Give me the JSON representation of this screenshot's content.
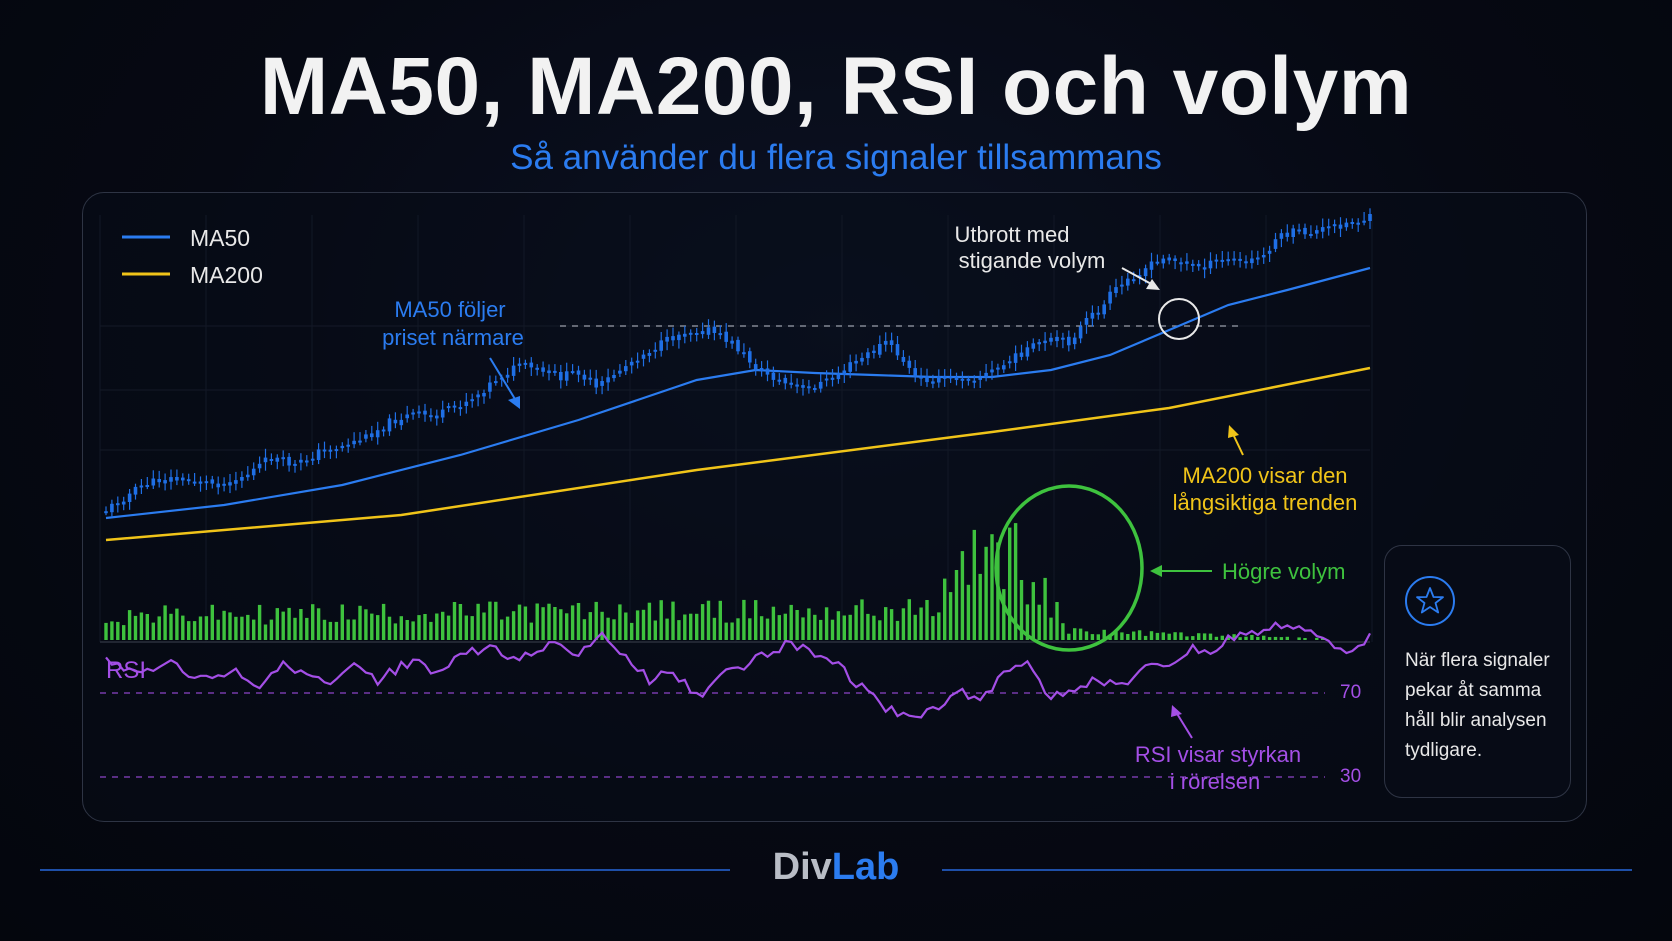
{
  "header": {
    "title": "MA50, MA200, RSI och volym",
    "subtitle": "Så använder du flera signaler tillsammans"
  },
  "colors": {
    "candle": "#1f6fe5",
    "ma50": "#2b7cf0",
    "ma200": "#f0c419",
    "volume": "#3ec23e",
    "rsi": "#a44fe6",
    "annotation_white": "#e8e8e8"
  },
  "chart_data": {
    "type": "line",
    "legend": {
      "placement": "top-left",
      "entries": [
        {
          "name": "MA50",
          "color": "#2b7cf0"
        },
        {
          "name": "MA200",
          "color": "#f0c419"
        }
      ]
    },
    "annotations": {
      "breakout": [
        "Utbrott med",
        "stigande volym"
      ],
      "ma50": [
        "MA50 följer",
        "priset närmare"
      ],
      "ma200": [
        "MA200 visar den",
        "långsiktiga trenden"
      ],
      "volume": "Högre volym",
      "rsi": [
        "RSI visar styrkan",
        "i rörelsen"
      ]
    },
    "rsi_panel": {
      "label": "RSI",
      "levels": [
        {
          "value": 70,
          "label": "70"
        },
        {
          "value": 30,
          "label": "30"
        }
      ]
    },
    "price_anchors": [
      [
        0,
        510
      ],
      [
        6,
        486
      ],
      [
        10,
        478
      ],
      [
        16,
        482
      ],
      [
        20,
        484
      ],
      [
        24,
        474
      ],
      [
        28,
        457
      ],
      [
        32,
        466
      ],
      [
        36,
        452
      ],
      [
        40,
        446
      ],
      [
        44,
        437
      ],
      [
        48,
        422
      ],
      [
        52,
        414
      ],
      [
        56,
        416
      ],
      [
        60,
        404
      ],
      [
        63,
        394
      ],
      [
        66,
        379
      ],
      [
        70,
        365
      ],
      [
        74,
        372
      ],
      [
        77,
        377
      ],
      [
        80,
        371
      ],
      [
        83,
        389
      ],
      [
        86,
        374
      ],
      [
        90,
        357
      ],
      [
        94,
        344
      ],
      [
        98,
        331
      ],
      [
        102,
        330
      ],
      [
        106,
        343
      ],
      [
        110,
        367
      ],
      [
        114,
        381
      ],
      [
        118,
        390
      ],
      [
        122,
        381
      ],
      [
        126,
        365
      ],
      [
        130,
        351
      ],
      [
        132,
        341
      ],
      [
        135,
        361
      ],
      [
        137,
        378
      ],
      [
        140,
        380
      ],
      [
        144,
        378
      ],
      [
        148,
        377
      ],
      [
        152,
        365
      ],
      [
        156,
        349
      ],
      [
        160,
        341
      ],
      [
        163,
        342
      ],
      [
        166,
        321
      ],
      [
        169,
        305
      ],
      [
        170,
        295
      ],
      [
        173,
        280
      ],
      [
        176,
        268
      ],
      [
        180,
        257
      ],
      [
        183,
        265
      ],
      [
        186,
        266
      ],
      [
        190,
        259
      ],
      [
        193,
        262
      ],
      [
        196,
        256
      ],
      [
        198,
        239
      ],
      [
        201,
        232
      ],
      [
        204,
        233
      ],
      [
        208,
        226
      ],
      [
        211,
        222
      ],
      [
        214,
        218
      ]
    ],
    "ma50_points": [
      [
        0,
        518
      ],
      [
        20,
        505
      ],
      [
        40,
        485
      ],
      [
        60,
        455
      ],
      [
        80,
        420
      ],
      [
        100,
        380
      ],
      [
        110,
        370
      ],
      [
        120,
        373
      ],
      [
        130,
        375
      ],
      [
        140,
        377
      ],
      [
        150,
        377
      ],
      [
        160,
        370
      ],
      [
        170,
        355
      ],
      [
        180,
        330
      ],
      [
        190,
        305
      ],
      [
        200,
        290
      ],
      [
        214,
        268
      ]
    ],
    "ma200_points": [
      [
        0,
        540
      ],
      [
        50,
        515
      ],
      [
        100,
        470
      ],
      [
        150,
        432
      ],
      [
        180,
        408
      ],
      [
        214,
        368
      ]
    ],
    "volume_anchors": [
      [
        0,
        26
      ],
      [
        60,
        30
      ],
      [
        140,
        32
      ],
      [
        145,
        80
      ],
      [
        148,
        110
      ],
      [
        151,
        95
      ],
      [
        154,
        120
      ],
      [
        157,
        80
      ],
      [
        160,
        40
      ],
      [
        163,
        10
      ],
      [
        214,
        0
      ]
    ],
    "rsi_anchors": [
      [
        0,
        662
      ],
      [
        6,
        676
      ],
      [
        10,
        660
      ],
      [
        16,
        680
      ],
      [
        22,
        672
      ],
      [
        26,
        687
      ],
      [
        30,
        660
      ],
      [
        34,
        676
      ],
      [
        38,
        688
      ],
      [
        42,
        668
      ],
      [
        46,
        680
      ],
      [
        52,
        660
      ],
      [
        56,
        672
      ],
      [
        60,
        655
      ],
      [
        66,
        648
      ],
      [
        70,
        660
      ],
      [
        76,
        642
      ],
      [
        80,
        655
      ],
      [
        84,
        632
      ],
      [
        88,
        655
      ],
      [
        92,
        680
      ],
      [
        96,
        670
      ],
      [
        100,
        698
      ],
      [
        104,
        673
      ],
      [
        108,
        665
      ],
      [
        112,
        655
      ],
      [
        116,
        642
      ],
      [
        120,
        654
      ],
      [
        124,
        665
      ],
      [
        128,
        688
      ],
      [
        132,
        708
      ],
      [
        136,
        718
      ],
      [
        140,
        712
      ],
      [
        144,
        688
      ],
      [
        148,
        700
      ],
      [
        152,
        676
      ],
      [
        156,
        660
      ],
      [
        160,
        698
      ],
      [
        164,
        688
      ],
      [
        168,
        680
      ],
      [
        172,
        686
      ],
      [
        176,
        670
      ],
      [
        180,
        665
      ],
      [
        184,
        650
      ],
      [
        188,
        653
      ],
      [
        190,
        640
      ],
      [
        194,
        632
      ],
      [
        198,
        625
      ],
      [
        202,
        630
      ],
      [
        206,
        640
      ],
      [
        210,
        650
      ],
      [
        214,
        638
      ],
      [
        215,
        636
      ]
    ]
  },
  "info_card": {
    "icon": "star-icon",
    "text": "När flera signaler pekar åt samma håll blir analysen tydligare."
  },
  "footer": {
    "brand_part1": "Div",
    "brand_part2": "Lab"
  }
}
